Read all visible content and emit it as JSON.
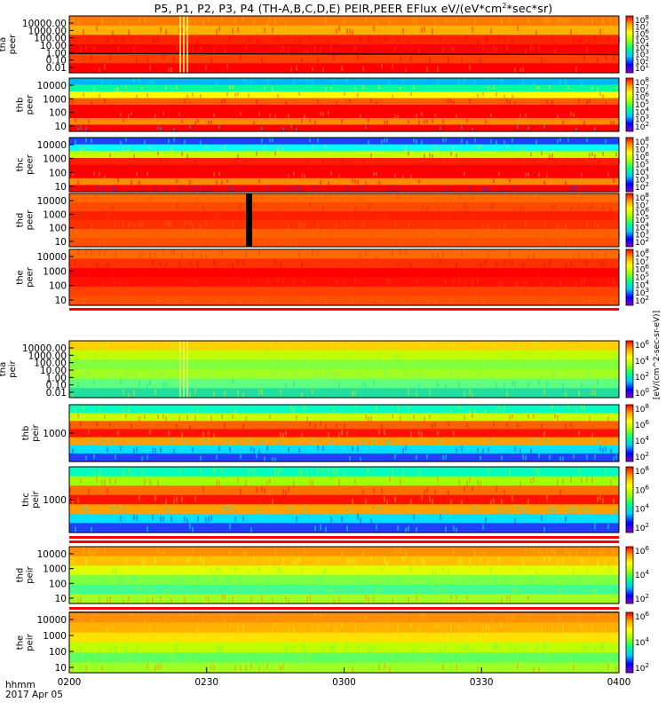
{
  "title": {
    "prefix": "P5, P1, P2, P3, P4 (TH-A,B,C,D,E) PEIR,PEER EFlux eV/(eV*cm",
    "sup": "2",
    "suffix": "*sec*sr)"
  },
  "footer": {
    "hhmm": "hhmm",
    "date": "2017 Apr 05"
  },
  "colors": {
    "background": "#ffffff",
    "band_red": "#ff0000"
  },
  "colorbar": {
    "gradient": [
      "#8a00c8",
      "#0000ff",
      "#00c8ff",
      "#00ff80",
      "#a0ff00",
      "#ffff00",
      "#ffa000",
      "#ff0000"
    ],
    "units_label": "[eV/(cm^2-sec-sr-eV)]"
  },
  "chart_data": [
    {
      "type": "heatmap",
      "name": "tha peer",
      "ylabel": [
        "tha",
        "peer"
      ],
      "yticks": [
        "10000.00",
        "1000.00",
        "100.00",
        "10.00",
        "1.00",
        "0.10",
        "0.01"
      ],
      "yscale": "log",
      "ylim": [
        0.01,
        30000
      ],
      "colorbar_ticks": [
        "10^8",
        "10^7",
        "10^6",
        "10^5",
        "10^4",
        "10^3",
        "10^2",
        "10^1"
      ],
      "palette": [
        "#ff7a00",
        "#ffb000",
        "#ff2400",
        "#ff0000",
        "#ff4000",
        "#ff0000"
      ],
      "features": [
        "black trace near 1.00",
        "yellow streaks near 0218"
      ]
    },
    {
      "type": "heatmap",
      "name": "thb peer",
      "ylabel": [
        "thb",
        "peer"
      ],
      "yticks": [
        "10000",
        "1000",
        "100",
        "10"
      ],
      "yscale": "log",
      "ylim": [
        5,
        20000
      ],
      "colorbar_ticks": [
        "10^8",
        "10^7",
        "10^6",
        "10^5",
        "10^4",
        "10^3",
        "10^2"
      ],
      "palette": [
        "#00b4ff",
        "#00ff9a",
        "#ffff00",
        "#ff5a00",
        "#ff0000",
        "#ff0000",
        "#ff8a00",
        "#ff0000"
      ]
    },
    {
      "type": "heatmap",
      "name": "thc peer",
      "ylabel": [
        "thc",
        "peer"
      ],
      "yticks": [
        "10000",
        "1000",
        "100",
        "10"
      ],
      "yscale": "log",
      "ylim": [
        5,
        20000
      ],
      "colorbar_ticks": [
        "10^8",
        "10^7",
        "10^6",
        "10^5",
        "10^4",
        "10^3",
        "10^2"
      ],
      "palette": [
        "#2040ff",
        "#00ffff",
        "#c8ff00",
        "#ff2000",
        "#ff0000",
        "#ff0000",
        "#ff8c00",
        "#ff0000"
      ]
    },
    {
      "type": "heatmap",
      "name": "thd peer",
      "ylabel": [
        "thd",
        "peer"
      ],
      "yticks": [
        "10000",
        "1000",
        "100",
        "10"
      ],
      "yscale": "log",
      "ylim": [
        5,
        20000
      ],
      "colorbar_ticks": [
        "10^8",
        "10^7",
        "10^6",
        "10^5",
        "10^4",
        "10^3",
        "10^2"
      ],
      "palette": [
        "#ff6a00",
        "#ff4a00",
        "#ff2000",
        "#ff3000",
        "#ff6000",
        "#ff5000"
      ],
      "features": [
        "black data-gap bar near 0234"
      ]
    },
    {
      "type": "heatmap",
      "name": "the peer",
      "ylabel": [
        "the",
        "peer"
      ],
      "yticks": [
        "10000",
        "1000",
        "100",
        "10"
      ],
      "yscale": "log",
      "ylim": [
        5,
        20000
      ],
      "colorbar_ticks": [
        "10^8",
        "10^7",
        "10^6",
        "10^5",
        "10^4",
        "10^3",
        "10^2"
      ],
      "palette": [
        "#ff6a00",
        "#ff3000",
        "#ff0000",
        "#ff1000",
        "#ff4000",
        "#ff5000"
      ]
    },
    {
      "type": "heatmap",
      "name": "tha peir",
      "ylabel": [
        "tha",
        "peir"
      ],
      "yticks": [
        "10000.00",
        "1000.00",
        "100.00",
        "10.00",
        "1.00",
        "0.10",
        "0.01"
      ],
      "yscale": "log",
      "ylim": [
        0.01,
        30000
      ],
      "colorbar_ticks": [
        "10^6",
        "10^4",
        "10^2",
        "10^0"
      ],
      "palette": [
        "#ffd000",
        "#c0ff00",
        "#80ff40",
        "#a0ff20",
        "#60ff80",
        "#20e0a0"
      ]
    },
    {
      "type": "heatmap",
      "name": "thb peir",
      "ylabel": [
        "thb",
        "peir"
      ],
      "yticks": [
        "1000"
      ],
      "yscale": "log",
      "ylim": [
        5,
        20000
      ],
      "colorbar_ticks": [
        "10^8",
        "10^6",
        "10^4",
        "10^2"
      ],
      "palette": [
        "#00ffc0",
        "#c8ff00",
        "#ff6000",
        "#ff1000",
        "#ffa000",
        "#00e0ff",
        "#2040ff"
      ]
    },
    {
      "type": "heatmap",
      "name": "thc peir",
      "ylabel": [
        "thc",
        "peir"
      ],
      "yticks": [
        "1000"
      ],
      "yscale": "log",
      "ylim": [
        5,
        20000
      ],
      "colorbar_ticks": [
        "10^8",
        "10^6",
        "10^4",
        "10^2"
      ],
      "palette": [
        "#00ffc0",
        "#a0ff00",
        "#ff7000",
        "#ff1000",
        "#ffa000",
        "#00e0ff",
        "#2040ff"
      ]
    },
    {
      "type": "heatmap",
      "name": "thd peir",
      "ylabel": [
        "thd",
        "peir"
      ],
      "yticks": [
        "10000",
        "1000",
        "100",
        "10"
      ],
      "yscale": "log",
      "ylim": [
        5,
        20000
      ],
      "colorbar_ticks": [
        "10^6",
        "10^4",
        "10^2"
      ],
      "palette": [
        "#ff9000",
        "#ffc000",
        "#e0ff00",
        "#80ff40",
        "#40ff90",
        "#a0ff20"
      ]
    },
    {
      "type": "heatmap",
      "name": "the peir",
      "ylabel": [
        "the",
        "peir"
      ],
      "yticks": [
        "10000",
        "1000",
        "100",
        "10"
      ],
      "yscale": "log",
      "ylim": [
        5,
        20000
      ],
      "colorbar_ticks": [
        "10^6",
        "10^4",
        "10^2"
      ],
      "palette": [
        "#ff9000",
        "#ffb000",
        "#ffe000",
        "#c0ff00",
        "#60ff60",
        "#a0ff20"
      ]
    }
  ],
  "x_axis": {
    "ticks": [
      "0200",
      "0230",
      "0300",
      "0330",
      "0400"
    ],
    "xlim": [
      "02:00",
      "04:00"
    ]
  }
}
